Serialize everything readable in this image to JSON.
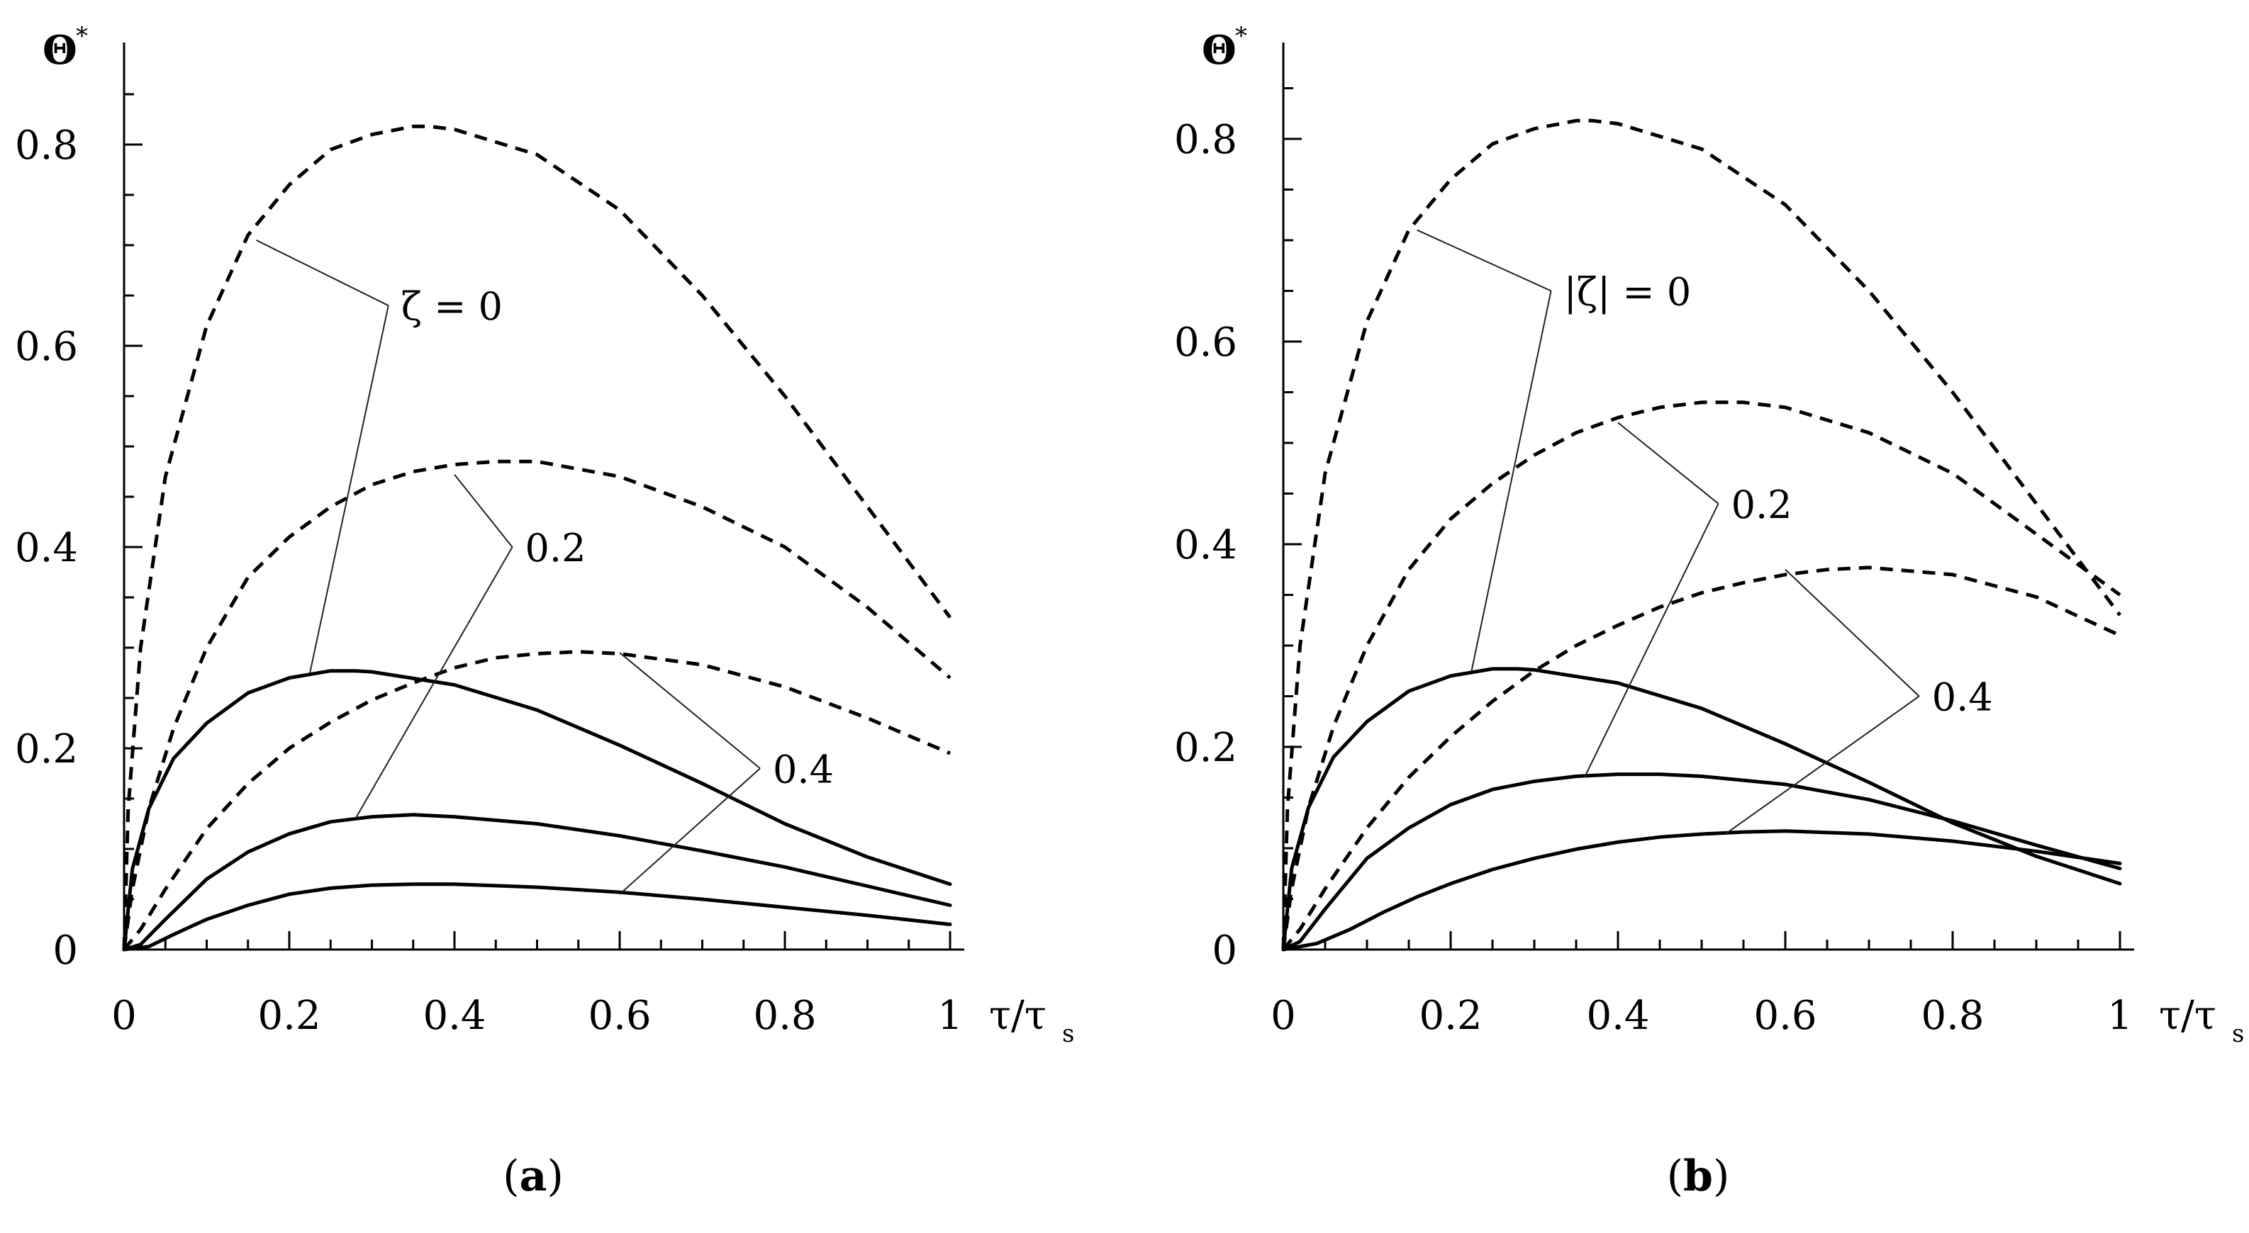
{
  "chart_data": [
    {
      "type": "line",
      "panel_label": "a",
      "xlabel": "τ/τ",
      "xlabel_sub": "s",
      "ylabel": "Θ",
      "ylabel_sup": "*",
      "xlim": [
        0,
        1
      ],
      "ylim": [
        0,
        0.9
      ],
      "xticks": [
        0,
        0.2,
        0.4,
        0.6,
        0.8,
        1
      ],
      "xtick_labels": [
        "0",
        "0.2",
        "0.4",
        "0.6",
        "0.8",
        "1"
      ],
      "yticks": [
        0,
        0.2,
        0.4,
        0.6,
        0.8
      ],
      "ytick_labels": [
        "0",
        "0.2",
        "0.4",
        "0.6",
        "0.8"
      ],
      "series": [
        {
          "name": "ζ = 0 (solid)",
          "style": "solid",
          "x": [
            0,
            0.01,
            0.03,
            0.06,
            0.1,
            0.15,
            0.2,
            0.25,
            0.28,
            0.3,
            0.4,
            0.5,
            0.6,
            0.7,
            0.8,
            0.9,
            1.0
          ],
          "y": [
            0,
            0.08,
            0.14,
            0.19,
            0.225,
            0.255,
            0.27,
            0.277,
            0.277,
            0.276,
            0.263,
            0.238,
            0.203,
            0.165,
            0.125,
            0.092,
            0.065
          ]
        },
        {
          "name": "0.2 (solid)",
          "style": "solid",
          "x": [
            0,
            0.02,
            0.05,
            0.1,
            0.15,
            0.2,
            0.25,
            0.3,
            0.35,
            0.4,
            0.5,
            0.6,
            0.7,
            0.8,
            0.9,
            1.0
          ],
          "y": [
            0,
            0.005,
            0.03,
            0.07,
            0.097,
            0.115,
            0.127,
            0.132,
            0.134,
            0.132,
            0.125,
            0.113,
            0.098,
            0.082,
            0.063,
            0.044
          ]
        },
        {
          "name": "0.4 (solid)",
          "style": "solid",
          "x": [
            0,
            0.03,
            0.06,
            0.1,
            0.15,
            0.2,
            0.25,
            0.3,
            0.35,
            0.4,
            0.5,
            0.6,
            0.7,
            0.8,
            0.9,
            1.0
          ],
          "y": [
            0,
            0.003,
            0.015,
            0.03,
            0.044,
            0.055,
            0.061,
            0.064,
            0.065,
            0.065,
            0.062,
            0.057,
            0.05,
            0.042,
            0.034,
            0.025
          ]
        },
        {
          "name": "ζ = 0 (dashed)",
          "style": "dashed",
          "x": [
            0,
            0.005,
            0.02,
            0.05,
            0.1,
            0.15,
            0.2,
            0.25,
            0.3,
            0.35,
            0.37,
            0.4,
            0.5,
            0.6,
            0.7,
            0.8,
            0.9,
            1.0
          ],
          "y": [
            0,
            0.14,
            0.3,
            0.47,
            0.62,
            0.71,
            0.76,
            0.795,
            0.81,
            0.818,
            0.818,
            0.815,
            0.79,
            0.735,
            0.65,
            0.55,
            0.44,
            0.33
          ]
        },
        {
          "name": "0.2 (dashed)",
          "style": "dashed",
          "x": [
            0,
            0.01,
            0.03,
            0.06,
            0.1,
            0.15,
            0.2,
            0.25,
            0.3,
            0.35,
            0.4,
            0.45,
            0.5,
            0.6,
            0.7,
            0.8,
            0.9,
            1.0
          ],
          "y": [
            0,
            0.06,
            0.14,
            0.22,
            0.3,
            0.37,
            0.41,
            0.44,
            0.462,
            0.475,
            0.482,
            0.485,
            0.485,
            0.47,
            0.44,
            0.4,
            0.34,
            0.27
          ]
        },
        {
          "name": "0.4 (dashed)",
          "style": "dashed",
          "x": [
            0,
            0.02,
            0.05,
            0.1,
            0.15,
            0.2,
            0.25,
            0.3,
            0.35,
            0.4,
            0.45,
            0.5,
            0.55,
            0.6,
            0.7,
            0.8,
            0.9,
            1.0
          ],
          "y": [
            0,
            0.02,
            0.06,
            0.12,
            0.165,
            0.2,
            0.226,
            0.248,
            0.265,
            0.28,
            0.29,
            0.294,
            0.296,
            0.294,
            0.283,
            0.261,
            0.23,
            0.195
          ]
        }
      ],
      "annotations": [
        {
          "text": "ζ = 0",
          "anchor": [
            0.32,
            0.64
          ],
          "leaders": [
            [
              0.16,
              0.705
            ],
            [
              0.225,
              0.275
            ]
          ]
        },
        {
          "text": "0.2",
          "anchor": [
            0.47,
            0.4
          ],
          "leaders": [
            [
              0.4,
              0.472
            ],
            [
              0.28,
              0.13
            ]
          ]
        },
        {
          "text": "0.4",
          "anchor": [
            0.77,
            0.18
          ],
          "leaders": [
            [
              0.6,
              0.295
            ],
            [
              0.6,
              0.055
            ]
          ]
        }
      ]
    },
    {
      "type": "line",
      "panel_label": "b",
      "xlabel": "τ/τ",
      "xlabel_sub": "s",
      "ylabel": "Θ",
      "ylabel_sup": "*",
      "xlim": [
        0,
        1
      ],
      "ylim": [
        0,
        0.9
      ],
      "xticks": [
        0,
        0.2,
        0.4,
        0.6,
        0.8,
        1
      ],
      "xtick_labels": [
        "0",
        "0.2",
        "0.4",
        "0.6",
        "0.8",
        "1"
      ],
      "yticks": [
        0,
        0.2,
        0.4,
        0.6,
        0.8
      ],
      "ytick_labels": [
        "0",
        "0.2",
        "0.4",
        "0.6",
        "0.8"
      ],
      "series": [
        {
          "name": "|ζ| = 0 (solid)",
          "style": "solid",
          "x": [
            0,
            0.01,
            0.03,
            0.06,
            0.1,
            0.15,
            0.2,
            0.25,
            0.28,
            0.3,
            0.4,
            0.5,
            0.6,
            0.7,
            0.8,
            0.9,
            1.0
          ],
          "y": [
            0,
            0.08,
            0.14,
            0.19,
            0.225,
            0.255,
            0.27,
            0.277,
            0.277,
            0.276,
            0.263,
            0.238,
            0.203,
            0.165,
            0.125,
            0.092,
            0.065
          ]
        },
        {
          "name": "0.2 (solid)",
          "style": "solid",
          "x": [
            0,
            0.02,
            0.05,
            0.1,
            0.15,
            0.2,
            0.25,
            0.3,
            0.35,
            0.4,
            0.45,
            0.5,
            0.6,
            0.7,
            0.8,
            0.9,
            1.0
          ],
          "y": [
            0,
            0.008,
            0.04,
            0.09,
            0.12,
            0.143,
            0.158,
            0.166,
            0.171,
            0.173,
            0.173,
            0.171,
            0.163,
            0.148,
            0.127,
            0.103,
            0.08
          ]
        },
        {
          "name": "0.4 (solid)",
          "style": "solid",
          "x": [
            0,
            0.04,
            0.08,
            0.12,
            0.16,
            0.2,
            0.25,
            0.3,
            0.35,
            0.4,
            0.45,
            0.5,
            0.55,
            0.6,
            0.7,
            0.8,
            0.9,
            1.0
          ],
          "y": [
            0,
            0.006,
            0.02,
            0.037,
            0.052,
            0.065,
            0.079,
            0.09,
            0.099,
            0.106,
            0.111,
            0.114,
            0.116,
            0.117,
            0.114,
            0.107,
            0.097,
            0.085
          ]
        },
        {
          "name": "|ζ| = 0 (dashed)",
          "style": "dashed",
          "x": [
            0,
            0.005,
            0.02,
            0.05,
            0.1,
            0.15,
            0.2,
            0.25,
            0.3,
            0.35,
            0.37,
            0.4,
            0.5,
            0.6,
            0.7,
            0.8,
            0.9,
            1.0
          ],
          "y": [
            0,
            0.14,
            0.3,
            0.47,
            0.62,
            0.71,
            0.76,
            0.795,
            0.81,
            0.818,
            0.818,
            0.815,
            0.79,
            0.735,
            0.65,
            0.55,
            0.44,
            0.33
          ]
        },
        {
          "name": "0.2 (dashed)",
          "style": "dashed",
          "x": [
            0,
            0.01,
            0.03,
            0.06,
            0.1,
            0.15,
            0.2,
            0.25,
            0.3,
            0.35,
            0.4,
            0.45,
            0.5,
            0.55,
            0.6,
            0.7,
            0.8,
            0.9,
            1.0
          ],
          "y": [
            0,
            0.06,
            0.14,
            0.22,
            0.3,
            0.375,
            0.425,
            0.46,
            0.488,
            0.51,
            0.525,
            0.535,
            0.54,
            0.54,
            0.535,
            0.51,
            0.47,
            0.41,
            0.35
          ]
        },
        {
          "name": "0.4 (dashed)",
          "style": "dashed",
          "x": [
            0,
            0.02,
            0.05,
            0.1,
            0.15,
            0.2,
            0.25,
            0.3,
            0.35,
            0.4,
            0.45,
            0.5,
            0.55,
            0.6,
            0.65,
            0.7,
            0.8,
            0.9,
            1.0
          ],
          "y": [
            0,
            0.02,
            0.06,
            0.12,
            0.17,
            0.21,
            0.245,
            0.275,
            0.3,
            0.32,
            0.338,
            0.352,
            0.362,
            0.37,
            0.375,
            0.377,
            0.37,
            0.348,
            0.31
          ]
        }
      ],
      "annotations": [
        {
          "text": "|ζ| = 0",
          "anchor": [
            0.32,
            0.65
          ],
          "leaders": [
            [
              0.16,
              0.71
            ],
            [
              0.225,
              0.275
            ]
          ]
        },
        {
          "text": "0.2",
          "anchor": [
            0.52,
            0.44
          ],
          "leaders": [
            [
              0.4,
              0.52
            ],
            [
              0.36,
              0.17
            ]
          ]
        },
        {
          "text": "0.4",
          "anchor": [
            0.76,
            0.25
          ],
          "leaders": [
            [
              0.6,
              0.375
            ],
            [
              0.53,
              0.115
            ]
          ]
        }
      ]
    }
  ]
}
